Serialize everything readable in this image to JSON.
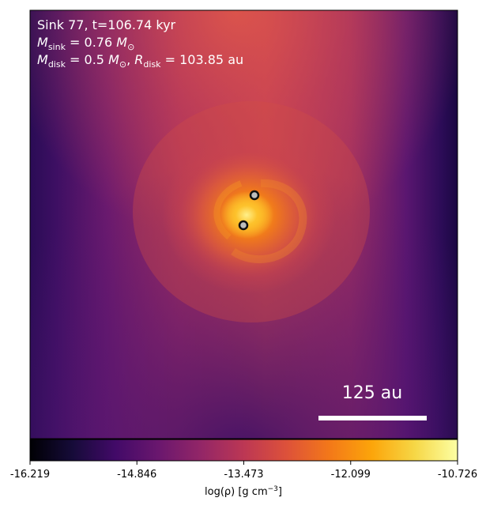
{
  "panel": {
    "line1": "Sink 77, t=106.74 kyr",
    "msink_sub": "sink",
    "msink_value": "0.76",
    "mdisk_sub": "disk",
    "mdisk_value": "0.5",
    "rdisk_sub": "disk",
    "rdisk_value": "103.85",
    "rdisk_unit": "au",
    "mass_unit_symbol": "M",
    "mass_unit_sub": "⊙"
  },
  "scale_bar": {
    "label": "125 au",
    "color": "#ffffff"
  },
  "colorbar": {
    "ticks": [
      "-16.219",
      "-14.846",
      "-13.473",
      "-12.099",
      "-10.726"
    ],
    "tick_values": [
      -16.219,
      -14.846,
      -13.473,
      -12.099,
      -10.726
    ],
    "range": [
      -16.219,
      -10.726
    ],
    "label_main": "log(ρ) [g cm",
    "label_exp": "−3",
    "label_end": "]",
    "colormap": "inferno"
  },
  "sinks": [
    {
      "name": "sink-a"
    },
    {
      "name": "sink-b"
    }
  ],
  "colors": {
    "background_dark": "#24094f",
    "disk_core": "#fdb42f",
    "envelope": "#c73e4c"
  }
}
